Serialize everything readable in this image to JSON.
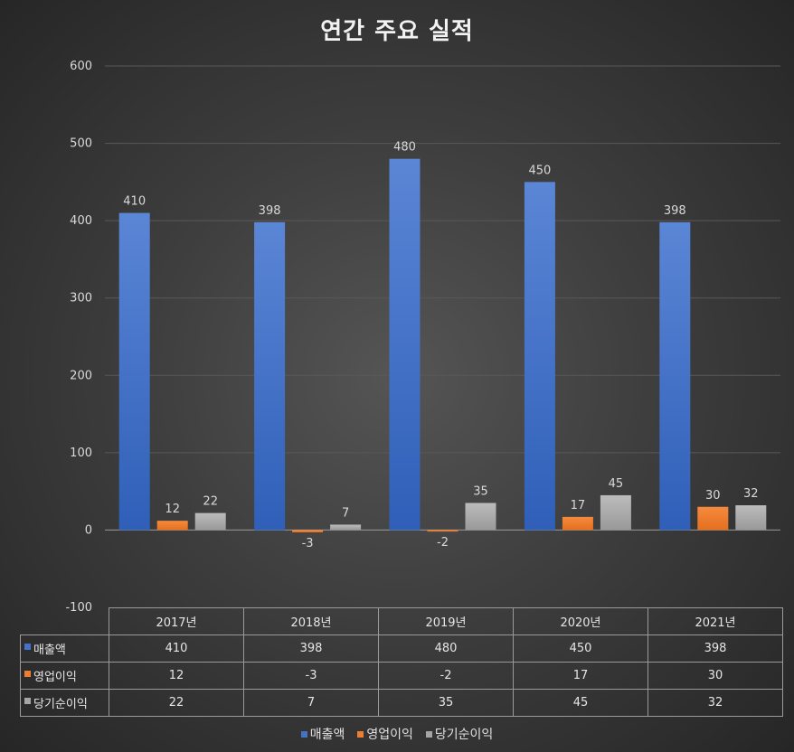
{
  "chart_data": {
    "type": "bar",
    "title": "연간 주요 실적",
    "categories": [
      "2017년",
      "2018년",
      "2019년",
      "2020년",
      "2021년"
    ],
    "series": [
      {
        "name": "매출액",
        "values": [
          410,
          398,
          480,
          450,
          398
        ],
        "color": "#4472c4"
      },
      {
        "name": "영업이익",
        "values": [
          12,
          -3,
          -2,
          17,
          30
        ],
        "color": "#ed7d31"
      },
      {
        "name": "당기순이익",
        "values": [
          22,
          7,
          35,
          45,
          32
        ],
        "color": "#a5a5a5"
      }
    ],
    "ylim": [
      -100,
      600
    ],
    "yticks": [
      600,
      500,
      400,
      300,
      200,
      100,
      0,
      -100
    ],
    "grid": true,
    "data_labels": true,
    "data_table": true,
    "legend": "bottom"
  }
}
